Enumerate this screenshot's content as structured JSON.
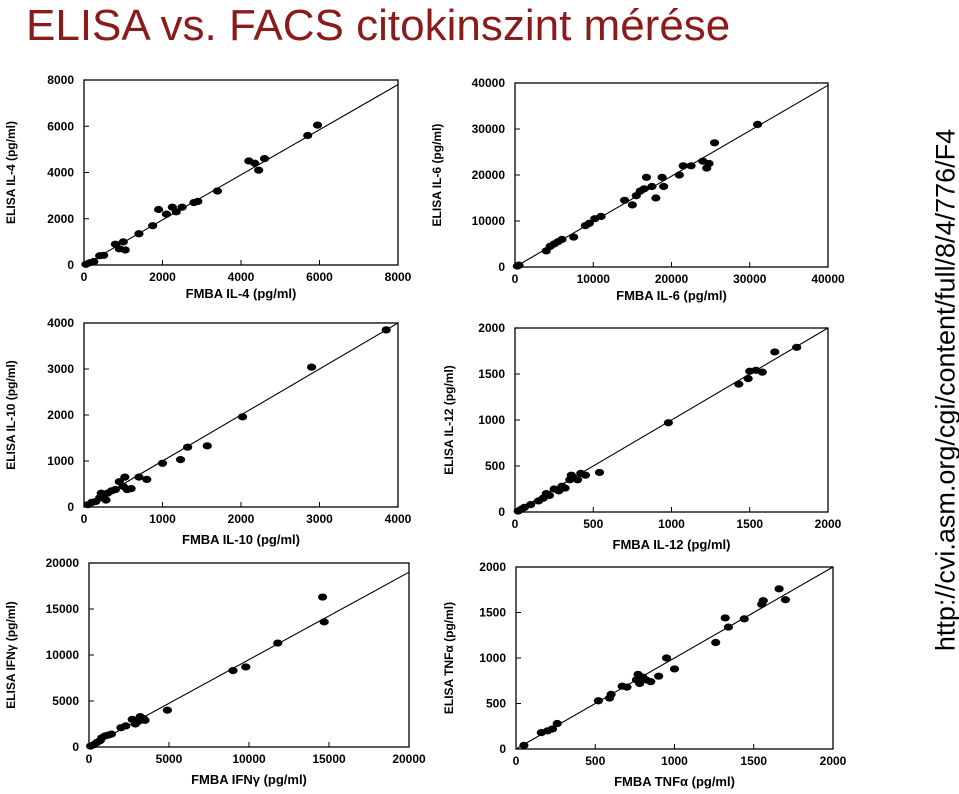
{
  "title": "ELISA vs. FACS citokinszint mérése",
  "source_url": "http://cvi.asm.org/cgi/content/full/8/4/776/F4",
  "colors": {
    "title": "#8b1a1a",
    "ink": "#000000"
  },
  "chart_data": [
    {
      "type": "scatter",
      "xlabel": "FMBA IL-4 (pg/ml)",
      "ylabel": "ELISA IL-4 (pg/ml)",
      "xlim": [
        0,
        8000
      ],
      "ylim": [
        0,
        8000
      ],
      "xticks": [
        "0",
        "2000",
        "4000",
        "6000",
        "8000"
      ],
      "xtick_values": [
        0,
        2000,
        4000,
        6000,
        8000
      ],
      "yticks": [
        "0",
        "2000",
        "4000",
        "6000",
        "8000"
      ],
      "ytick_values": [
        0,
        2000,
        4000,
        6000,
        8000
      ],
      "fit_line": [
        [
          0,
          0
        ],
        [
          8000,
          7800
        ]
      ],
      "points": [
        [
          50,
          30
        ],
        [
          150,
          100
        ],
        [
          250,
          150
        ],
        [
          400,
          400
        ],
        [
          500,
          420
        ],
        [
          800,
          900
        ],
        [
          900,
          700
        ],
        [
          1000,
          1000
        ],
        [
          1050,
          650
        ],
        [
          1400,
          1350
        ],
        [
          1750,
          1700
        ],
        [
          1900,
          2400
        ],
        [
          2100,
          2200
        ],
        [
          2250,
          2500
        ],
        [
          2350,
          2300
        ],
        [
          2500,
          2500
        ],
        [
          2800,
          2700
        ],
        [
          2900,
          2750
        ],
        [
          3400,
          3200
        ],
        [
          4200,
          4500
        ],
        [
          4350,
          4400
        ],
        [
          4450,
          4100
        ],
        [
          4600,
          4600
        ],
        [
          5700,
          5600
        ],
        [
          5950,
          6050
        ]
      ]
    },
    {
      "type": "scatter",
      "xlabel": "FMBA IL-6 (pg/ml)",
      "ylabel": "ELISA IL-6 (pg/ml)",
      "xlim": [
        0,
        40000
      ],
      "ylim": [
        0,
        40000
      ],
      "xticks": [
        "0",
        "10000",
        "20000",
        "30000",
        "40000"
      ],
      "xtick_values": [
        0,
        10000,
        20000,
        30000,
        40000
      ],
      "yticks": [
        "0",
        "10000",
        "20000",
        "30000",
        "40000"
      ],
      "ytick_values": [
        0,
        10000,
        20000,
        30000,
        40000
      ],
      "fit_line": [
        [
          0,
          0
        ],
        [
          40000,
          39500
        ]
      ],
      "points": [
        [
          300,
          200
        ],
        [
          500,
          400
        ],
        [
          4000,
          3500
        ],
        [
          4500,
          4500
        ],
        [
          5000,
          5000
        ],
        [
          5500,
          5500
        ],
        [
          6000,
          6000
        ],
        [
          7500,
          6500
        ],
        [
          9000,
          9000
        ],
        [
          9500,
          9500
        ],
        [
          10200,
          10500
        ],
        [
          11000,
          11000
        ],
        [
          14000,
          14500
        ],
        [
          15000,
          13500
        ],
        [
          15500,
          15500
        ],
        [
          16000,
          16500
        ],
        [
          16500,
          17000
        ],
        [
          16800,
          19500
        ],
        [
          17500,
          17500
        ],
        [
          18000,
          15000
        ],
        [
          18800,
          19500
        ],
        [
          19000,
          17500
        ],
        [
          21000,
          20000
        ],
        [
          21500,
          22000
        ],
        [
          22500,
          22000
        ],
        [
          24000,
          23000
        ],
        [
          24500,
          21500
        ],
        [
          24800,
          22500
        ],
        [
          25500,
          27000
        ],
        [
          31000,
          31000
        ]
      ]
    },
    {
      "type": "scatter",
      "xlabel": "FMBA IL-10 (pg/ml)",
      "ylabel": "ELISA IL-10 (pg/ml)",
      "xlim": [
        0,
        4000
      ],
      "ylim": [
        0,
        4000
      ],
      "xticks": [
        "0",
        "1000",
        "2000",
        "3000",
        "4000"
      ],
      "xtick_values": [
        0,
        1000,
        2000,
        3000,
        4000
      ],
      "yticks": [
        "0",
        "1000",
        "2000",
        "3000",
        "4000"
      ],
      "ytick_values": [
        0,
        1000,
        2000,
        3000,
        4000
      ],
      "fit_line": [
        [
          0,
          0
        ],
        [
          4000,
          4000
        ]
      ],
      "points": [
        [
          50,
          50
        ],
        [
          100,
          100
        ],
        [
          150,
          120
        ],
        [
          200,
          200
        ],
        [
          220,
          300
        ],
        [
          250,
          250
        ],
        [
          280,
          150
        ],
        [
          300,
          300
        ],
        [
          350,
          350
        ],
        [
          400,
          380
        ],
        [
          450,
          550
        ],
        [
          500,
          450
        ],
        [
          520,
          650
        ],
        [
          550,
          380
        ],
        [
          600,
          400
        ],
        [
          700,
          650
        ],
        [
          800,
          600
        ],
        [
          1000,
          950
        ],
        [
          1230,
          1030
        ],
        [
          1320,
          1300
        ],
        [
          1570,
          1330
        ],
        [
          2020,
          1960
        ],
        [
          2900,
          3040
        ],
        [
          3850,
          3850
        ]
      ]
    },
    {
      "type": "scatter",
      "xlabel": "FMBA IL-12 (pg/ml)",
      "ylabel": "ELISA IL-12 (pg/ml)",
      "xlim": [
        0,
        2000
      ],
      "ylim": [
        0,
        2000
      ],
      "xticks": [
        "0",
        "500",
        "1000",
        "1500",
        "2000"
      ],
      "xtick_values": [
        0,
        500,
        1000,
        1500,
        2000
      ],
      "yticks": [
        "0",
        "500",
        "1000",
        "1500",
        "2000"
      ],
      "ytick_values": [
        0,
        500,
        1000,
        1500,
        2000
      ],
      "fit_line": [
        [
          0,
          0
        ],
        [
          2000,
          2000
        ]
      ],
      "points": [
        [
          20,
          10
        ],
        [
          40,
          30
        ],
        [
          60,
          50
        ],
        [
          100,
          80
        ],
        [
          150,
          120
        ],
        [
          180,
          150
        ],
        [
          200,
          200
        ],
        [
          220,
          180
        ],
        [
          250,
          250
        ],
        [
          280,
          230
        ],
        [
          300,
          280
        ],
        [
          320,
          260
        ],
        [
          350,
          350
        ],
        [
          360,
          400
        ],
        [
          400,
          350
        ],
        [
          420,
          420
        ],
        [
          450,
          400
        ],
        [
          540,
          430
        ],
        [
          980,
          970
        ],
        [
          1430,
          1390
        ],
        [
          1490,
          1450
        ],
        [
          1500,
          1530
        ],
        [
          1540,
          1540
        ],
        [
          1580,
          1520
        ],
        [
          1660,
          1740
        ],
        [
          1800,
          1790
        ]
      ]
    },
    {
      "type": "scatter",
      "xlabel": "FMBA IFNγ (pg/ml)",
      "ylabel": "ELISA IFNγ (pg/ml)",
      "xlim": [
        0,
        20000
      ],
      "ylim": [
        0,
        20000
      ],
      "xticks": [
        "0",
        "5000",
        "10000",
        "15000",
        "20000"
      ],
      "xtick_values": [
        0,
        5000,
        10000,
        15000,
        20000
      ],
      "yticks": [
        "0",
        "5000",
        "10000",
        "15000",
        "20000"
      ],
      "ytick_values": [
        0,
        5000,
        10000,
        15000,
        20000
      ],
      "fit_line": [
        [
          0,
          0
        ],
        [
          20000,
          19000
        ]
      ],
      "points": [
        [
          100,
          100
        ],
        [
          300,
          250
        ],
        [
          500,
          500
        ],
        [
          700,
          700
        ],
        [
          800,
          1000
        ],
        [
          1000,
          1200
        ],
        [
          1200,
          1300
        ],
        [
          1400,
          1400
        ],
        [
          2000,
          2100
        ],
        [
          2300,
          2300
        ],
        [
          2700,
          3000
        ],
        [
          2900,
          2500
        ],
        [
          3100,
          2800
        ],
        [
          3200,
          3300
        ],
        [
          3400,
          3100
        ],
        [
          3500,
          2900
        ],
        [
          4900,
          4000
        ],
        [
          9000,
          8300
        ],
        [
          9800,
          8700
        ],
        [
          11800,
          11300
        ],
        [
          14600,
          16300
        ],
        [
          14700,
          13600
        ]
      ]
    },
    {
      "type": "scatter",
      "xlabel": "FMBA TNFα (pg/ml)",
      "ylabel": "ELISA TNFα (pg/ml)",
      "xlim": [
        0,
        2000
      ],
      "ylim": [
        0,
        2000
      ],
      "xticks": [
        "0",
        "500",
        "1000",
        "1500",
        "2000"
      ],
      "xtick_values": [
        0,
        500,
        1000,
        1500,
        2000
      ],
      "yticks": [
        "0",
        "500",
        "1000",
        "1500",
        "2000"
      ],
      "ytick_values": [
        0,
        500,
        1000,
        1500,
        2000
      ],
      "fit_line": [
        [
          0,
          0
        ],
        [
          2000,
          2000
        ]
      ],
      "points": [
        [
          50,
          40
        ],
        [
          160,
          180
        ],
        [
          200,
          200
        ],
        [
          230,
          220
        ],
        [
          260,
          280
        ],
        [
          520,
          530
        ],
        [
          590,
          560
        ],
        [
          600,
          600
        ],
        [
          670,
          690
        ],
        [
          700,
          680
        ],
        [
          760,
          760
        ],
        [
          770,
          820
        ],
        [
          780,
          720
        ],
        [
          800,
          790
        ],
        [
          820,
          760
        ],
        [
          850,
          740
        ],
        [
          900,
          800
        ],
        [
          950,
          1000
        ],
        [
          1000,
          880
        ],
        [
          1260,
          1170
        ],
        [
          1320,
          1440
        ],
        [
          1340,
          1340
        ],
        [
          1440,
          1430
        ],
        [
          1550,
          1590
        ],
        [
          1560,
          1630
        ],
        [
          1660,
          1760
        ],
        [
          1700,
          1640
        ]
      ]
    }
  ]
}
